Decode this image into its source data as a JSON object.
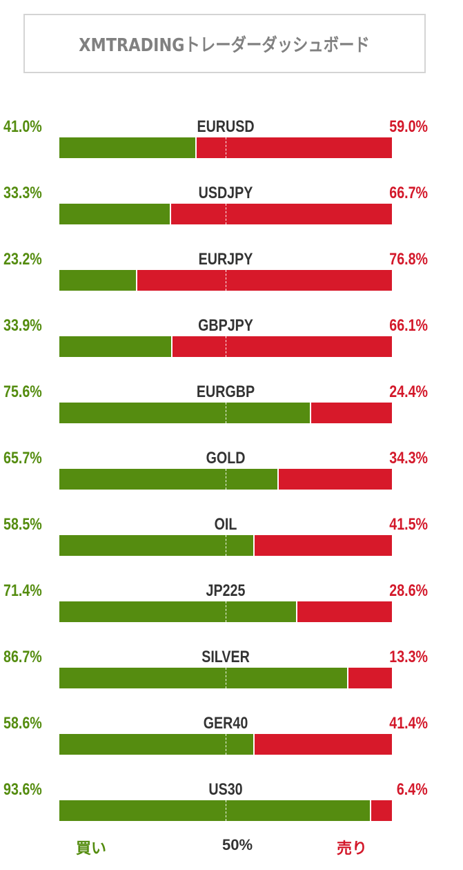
{
  "title": "XMTRADINGトレーダーダッシュボード",
  "colors": {
    "buy": "#558c10",
    "sell": "#d7192a",
    "symbol": "#333333"
  },
  "legend": {
    "buy": "買い",
    "mid": "50%",
    "sell": "売り"
  },
  "chart_data": {
    "type": "bar",
    "orientation": "horizontal-stacked",
    "categories": [
      "EURUSD",
      "USDJPY",
      "EURJPY",
      "GBPJPY",
      "EURGBP",
      "GOLD",
      "OIL",
      "JP225",
      "SILVER",
      "GER40",
      "US30"
    ],
    "series": [
      {
        "name": "買い",
        "values": [
          41.0,
          33.3,
          23.2,
          33.9,
          75.6,
          65.7,
          58.5,
          71.4,
          86.7,
          58.6,
          93.6
        ]
      },
      {
        "name": "売り",
        "values": [
          59.0,
          66.7,
          76.8,
          66.1,
          24.4,
          34.3,
          41.5,
          28.6,
          13.3,
          41.4,
          6.4
        ]
      }
    ],
    "buy_labels": [
      "41.0%",
      "33.3%",
      "23.2%",
      "33.9%",
      "75.6%",
      "65.7%",
      "58.5%",
      "71.4%",
      "86.7%",
      "58.6%",
      "93.6%"
    ],
    "sell_labels": [
      "59.0%",
      "66.7%",
      "76.8%",
      "66.1%",
      "24.4%",
      "34.3%",
      "41.5%",
      "28.6%",
      "13.3%",
      "41.4%",
      "6.4%"
    ],
    "xlim": [
      0,
      100
    ],
    "reference_line": 50
  }
}
